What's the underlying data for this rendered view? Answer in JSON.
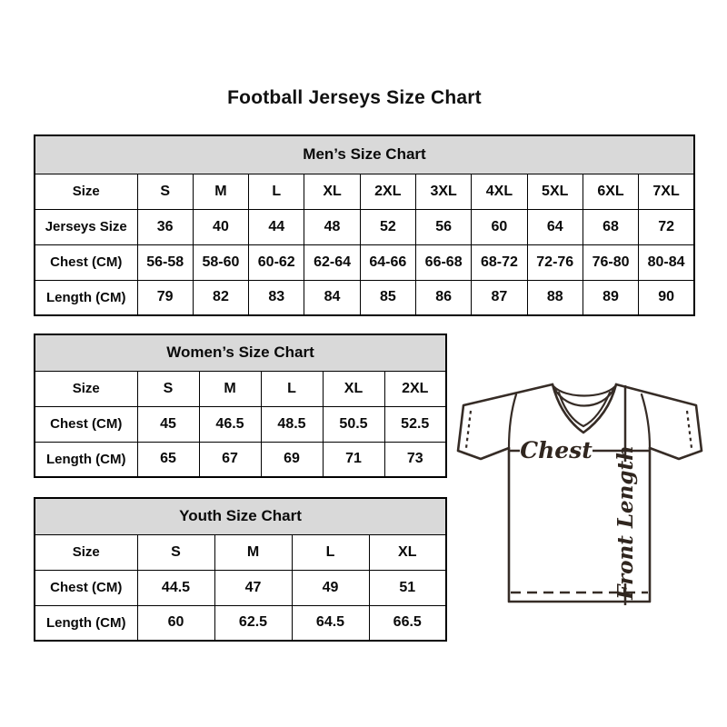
{
  "title": "Football Jerseys Size Chart",
  "colors": {
    "header_bg": "#d9d9d9",
    "table_border": "#000000",
    "text": "#0a0a0a",
    "jersey_line": "#362c26",
    "background": "#ffffff"
  },
  "tables": {
    "men": {
      "header": "Men’s Size Chart",
      "rows": [
        {
          "label": "Size",
          "values": [
            "S",
            "M",
            "L",
            "XL",
            "2XL",
            "3XL",
            "4XL",
            "5XL",
            "6XL",
            "7XL"
          ]
        },
        {
          "label": "Jerseys Size",
          "values": [
            "36",
            "40",
            "44",
            "48",
            "52",
            "56",
            "60",
            "64",
            "68",
            "72"
          ]
        },
        {
          "label": "Chest (CM)",
          "values": [
            "56-58",
            "58-60",
            "60-62",
            "62-64",
            "64-66",
            "66-68",
            "68-72",
            "72-76",
            "76-80",
            "80-84"
          ]
        },
        {
          "label": "Length (CM)",
          "values": [
            "79",
            "82",
            "83",
            "84",
            "85",
            "86",
            "87",
            "88",
            "89",
            "90"
          ]
        }
      ]
    },
    "women": {
      "header": "Women’s Size Chart",
      "rows": [
        {
          "label": "Size",
          "values": [
            "S",
            "M",
            "L",
            "XL",
            "2XL"
          ]
        },
        {
          "label": "Chest (CM)",
          "values": [
            "45",
            "46.5",
            "48.5",
            "50.5",
            "52.5"
          ]
        },
        {
          "label": "Length (CM)",
          "values": [
            "65",
            "67",
            "69",
            "71",
            "73"
          ]
        }
      ]
    },
    "youth": {
      "header": "Youth Size Chart",
      "rows": [
        {
          "label": "Size",
          "values": [
            "S",
            "M",
            "L",
            "XL"
          ]
        },
        {
          "label": "Chest (CM)",
          "values": [
            "44.5",
            "47",
            "49",
            "51"
          ]
        },
        {
          "label": "Length (CM)",
          "values": [
            "60",
            "62.5",
            "64.5",
            "66.5"
          ]
        }
      ]
    }
  },
  "diagram": {
    "chest_label": "Chest",
    "front_length_label": "Front Length"
  },
  "chart_data": [
    {
      "type": "table",
      "title": "Men’s Size Chart",
      "columns": [
        "Size",
        "S",
        "M",
        "L",
        "XL",
        "2XL",
        "3XL",
        "4XL",
        "5XL",
        "6XL",
        "7XL"
      ],
      "rows": [
        [
          "Jerseys Size",
          "36",
          "40",
          "44",
          "48",
          "52",
          "56",
          "60",
          "64",
          "68",
          "72"
        ],
        [
          "Chest (CM)",
          "56-58",
          "58-60",
          "60-62",
          "62-64",
          "64-66",
          "66-68",
          "68-72",
          "72-76",
          "76-80",
          "80-84"
        ],
        [
          "Length (CM)",
          "79",
          "82",
          "83",
          "84",
          "85",
          "86",
          "87",
          "88",
          "89",
          "90"
        ]
      ]
    },
    {
      "type": "table",
      "title": "Women’s Size Chart",
      "columns": [
        "Size",
        "S",
        "M",
        "L",
        "XL",
        "2XL"
      ],
      "rows": [
        [
          "Chest (CM)",
          "45",
          "46.5",
          "48.5",
          "50.5",
          "52.5"
        ],
        [
          "Length (CM)",
          "65",
          "67",
          "69",
          "71",
          "73"
        ]
      ]
    },
    {
      "type": "table",
      "title": "Youth Size Chart",
      "columns": [
        "Size",
        "S",
        "M",
        "L",
        "XL"
      ],
      "rows": [
        [
          "Chest (CM)",
          "44.5",
          "47",
          "49",
          "51"
        ],
        [
          "Length (CM)",
          "60",
          "62.5",
          "64.5",
          "66.5"
        ]
      ]
    }
  ]
}
